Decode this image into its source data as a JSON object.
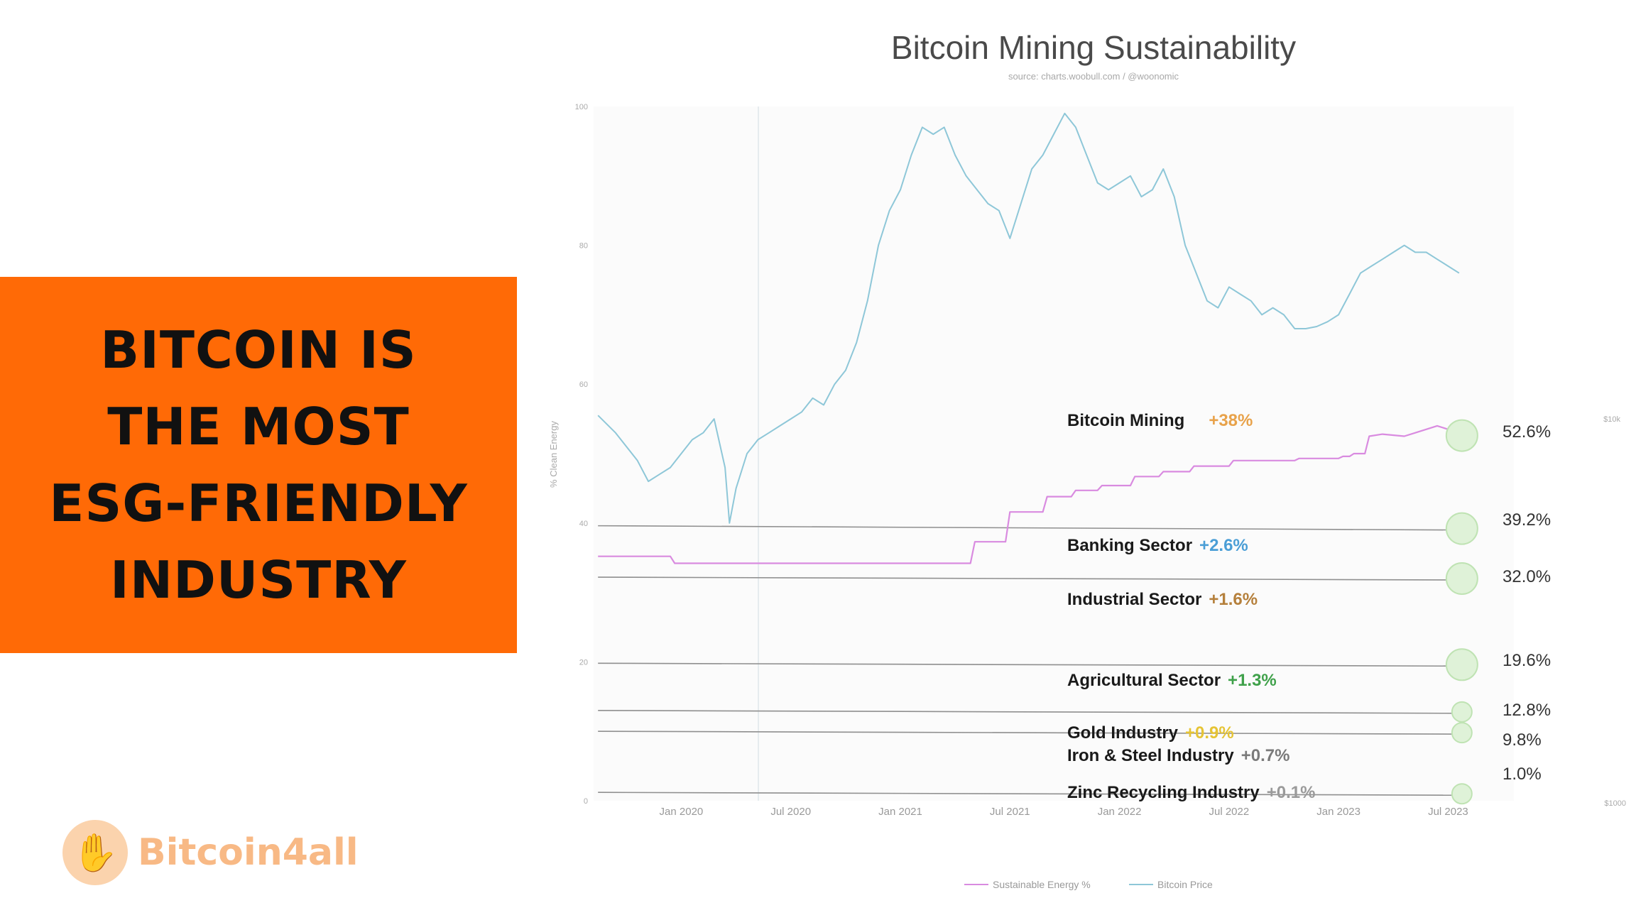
{
  "headline": {
    "lines": [
      "BITCOIN IS",
      "THE MOST",
      "ESG-FRIENDLY",
      "INDUSTRY"
    ],
    "background": "#ff6a06"
  },
  "logo": {
    "text": "Bitcoin4all",
    "icon": "hands-icon"
  },
  "chart_data": {
    "type": "line",
    "title": "Bitcoin Mining Sustainability",
    "subtitle": "source: charts.woobull.com / @woonomic",
    "ylabel": "% Clean Energy",
    "ylim": [
      0,
      100
    ],
    "yticks": [
      "0",
      "20",
      "40",
      "60",
      "80",
      "100"
    ],
    "right_ticks": [
      "$10k",
      "$1000"
    ],
    "xlim": [
      2019.6,
      2023.8
    ],
    "xticks": [
      {
        "label": "Jan 2020",
        "x": 2020.0
      },
      {
        "label": "Jul 2020",
        "x": 2020.5
      },
      {
        "label": "Jan 2021",
        "x": 2021.0
      },
      {
        "label": "Jul 2021",
        "x": 2021.5
      },
      {
        "label": "Jan 2022",
        "x": 2022.0
      },
      {
        "label": "Jul 2022",
        "x": 2022.5
      },
      {
        "label": "Jan 2023",
        "x": 2023.0
      },
      {
        "label": "Jul 2023",
        "x": 2023.5
      }
    ],
    "series": [
      {
        "name": "Sustainable Energy %",
        "color": "#d98be0",
        "x": [
          2019.62,
          2019.95,
          2019.97,
          2020.4,
          2020.8,
          2021.0,
          2021.32,
          2021.34,
          2021.48,
          2021.5,
          2021.65,
          2021.67,
          2021.78,
          2021.8,
          2021.9,
          2021.92,
          2022.05,
          2022.07,
          2022.18,
          2022.2,
          2022.32,
          2022.34,
          2022.5,
          2022.52,
          2022.8,
          2022.82,
          2023.0,
          2023.02,
          2023.05,
          2023.07,
          2023.12,
          2023.14,
          2023.2,
          2023.3,
          2023.35,
          2023.45,
          2023.5,
          2023.55
        ],
        "y": [
          35.2,
          35.2,
          34.2,
          34.2,
          34.2,
          34.2,
          34.2,
          37.3,
          37.3,
          41.6,
          41.6,
          43.8,
          43.8,
          44.7,
          44.7,
          45.4,
          45.4,
          46.7,
          46.7,
          47.4,
          47.4,
          48.2,
          48.2,
          49.0,
          49.0,
          49.3,
          49.3,
          49.6,
          49.6,
          50.0,
          50.0,
          52.5,
          52.8,
          52.5,
          53.0,
          54.0,
          53.5,
          52.6
        ]
      },
      {
        "name": "Bitcoin Price",
        "color": "#8ec7d8",
        "x": [
          2019.62,
          2019.7,
          2019.75,
          2019.8,
          2019.85,
          2019.9,
          2019.95,
          2020.0,
          2020.05,
          2020.1,
          2020.15,
          2020.2,
          2020.22,
          2020.25,
          2020.3,
          2020.35,
          2020.4,
          2020.45,
          2020.5,
          2020.55,
          2020.6,
          2020.65,
          2020.7,
          2020.75,
          2020.8,
          2020.85,
          2020.9,
          2020.95,
          2021.0,
          2021.05,
          2021.1,
          2021.15,
          2021.2,
          2021.25,
          2021.3,
          2021.35,
          2021.4,
          2021.45,
          2021.5,
          2021.55,
          2021.6,
          2021.65,
          2021.7,
          2021.75,
          2021.8,
          2021.85,
          2021.9,
          2021.95,
          2022.0,
          2022.05,
          2022.1,
          2022.15,
          2022.2,
          2022.25,
          2022.3,
          2022.35,
          2022.4,
          2022.45,
          2022.5,
          2022.55,
          2022.6,
          2022.65,
          2022.7,
          2022.75,
          2022.8,
          2022.85,
          2022.9,
          2022.95,
          2023.0,
          2023.05,
          2023.1,
          2023.15,
          2023.2,
          2023.25,
          2023.3,
          2023.35,
          2023.4,
          2023.45,
          2023.5,
          2023.55
        ],
        "y": [
          55.5,
          53,
          51,
          49,
          46,
          47,
          48,
          50,
          52,
          53,
          55,
          48,
          40,
          45,
          50,
          52,
          53,
          54,
          55,
          56,
          58,
          57,
          60,
          62,
          66,
          72,
          80,
          85,
          88,
          93,
          97,
          96,
          97,
          93,
          90,
          88,
          86,
          85,
          81,
          86,
          91,
          93,
          96,
          99,
          97,
          93,
          89,
          88,
          89,
          90,
          87,
          88,
          91,
          87,
          80,
          76,
          72,
          71,
          74,
          73,
          72,
          70,
          71,
          70,
          68,
          68,
          68.3,
          69,
          70,
          73,
          76,
          77,
          78,
          79,
          80,
          79,
          79,
          78,
          77,
          76
        ]
      }
    ],
    "annotations": [
      {
        "label": "Bitcoin Mining",
        "change": "+38%",
        "change_color": "#e8a24a",
        "value": "52.6%",
        "y": 52.6
      },
      {
        "label": "Banking Sector",
        "change": "+2.6%",
        "change_color": "#4a9ed6",
        "value": "39.2%",
        "y": 39.2
      },
      {
        "label": "Industrial Sector",
        "change": "+1.6%",
        "change_color": "#b5803c",
        "value": "32.0%",
        "y": 32.0
      },
      {
        "label": "Agricultural Sector",
        "change": "+1.3%",
        "change_color": "#3fa14a",
        "value": "19.6%",
        "y": 19.6
      },
      {
        "label": "Gold Industry",
        "change": "+0.9%",
        "change_color": "#e6c435",
        "value": "12.8%",
        "y": 12.8
      },
      {
        "label": "Iron & Steel Industry",
        "change": "+0.7%",
        "change_color": "#7a7a7a",
        "value": "9.8%",
        "y": 9.8
      },
      {
        "label": "Zinc Recycling Industry",
        "change": "+0.1%",
        "change_color": "#9a9a9a",
        "value": "1.0%",
        "y": 1.0
      }
    ],
    "legend": [
      {
        "label": "Sustainable Energy %",
        "color": "#d98be0"
      },
      {
        "label": "Bitcoin Price",
        "color": "#8ec7d8"
      }
    ],
    "legend_position": "bottom-center",
    "grid": false
  }
}
